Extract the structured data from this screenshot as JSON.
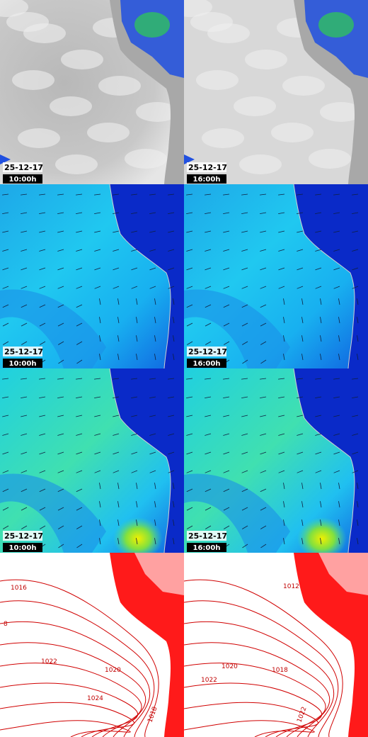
{
  "panels": [
    {
      "date": "25-12-17",
      "time": "10:00h"
    },
    {
      "date": "25-12-17",
      "time": "16:00h"
    },
    {
      "date": "25-12-17",
      "time": "10:00h"
    },
    {
      "date": "25-12-17",
      "time": "16:00h"
    },
    {
      "date": "25-12-17",
      "time": "10:00h"
    },
    {
      "date": "25-12-17",
      "time": "16:00h"
    },
    {
      "isobar_labels": [
        "1016",
        "8",
        "1022",
        "1020",
        "1024",
        "1018"
      ]
    },
    {
      "isobar_labels": [
        "1012",
        "1020",
        "1018",
        "1022",
        "1022"
      ]
    }
  ]
}
